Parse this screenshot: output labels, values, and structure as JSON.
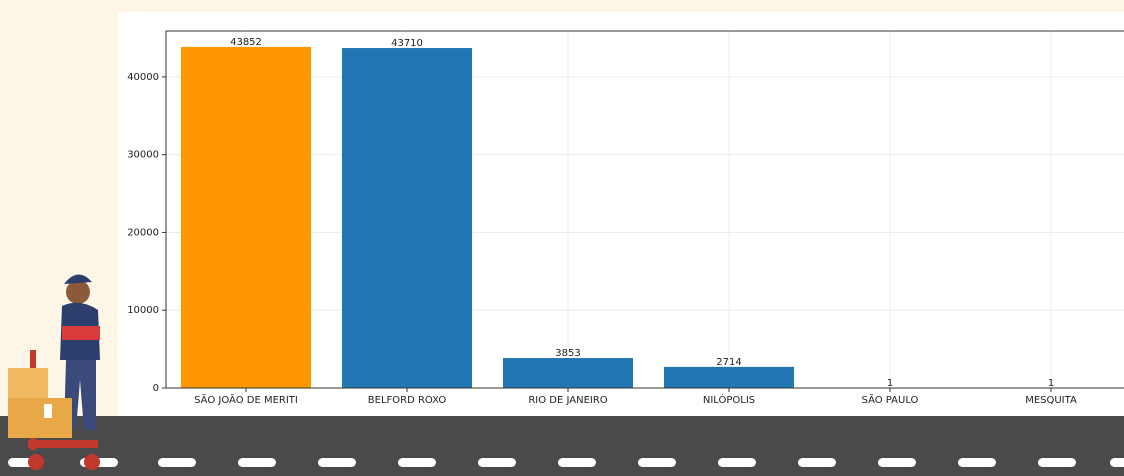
{
  "chart_data": {
    "type": "bar",
    "categories": [
      "SÃO JOÃO DE MERITI",
      "BELFORD ROXO",
      "RIO DE JANEIRO",
      "NILÓPOLIS",
      "SÃO PAULO",
      "MESQUITA"
    ],
    "values": [
      43852,
      43710,
      3853,
      2714,
      1,
      1
    ],
    "colors": [
      "#ff9800",
      "#2077b4",
      "#2077b4",
      "#2077b4",
      "#2077b4",
      "#2077b4"
    ],
    "ylim": [
      0,
      45900
    ],
    "yticks": [
      0,
      10000,
      20000,
      30000,
      40000
    ],
    "grid": true
  }
}
